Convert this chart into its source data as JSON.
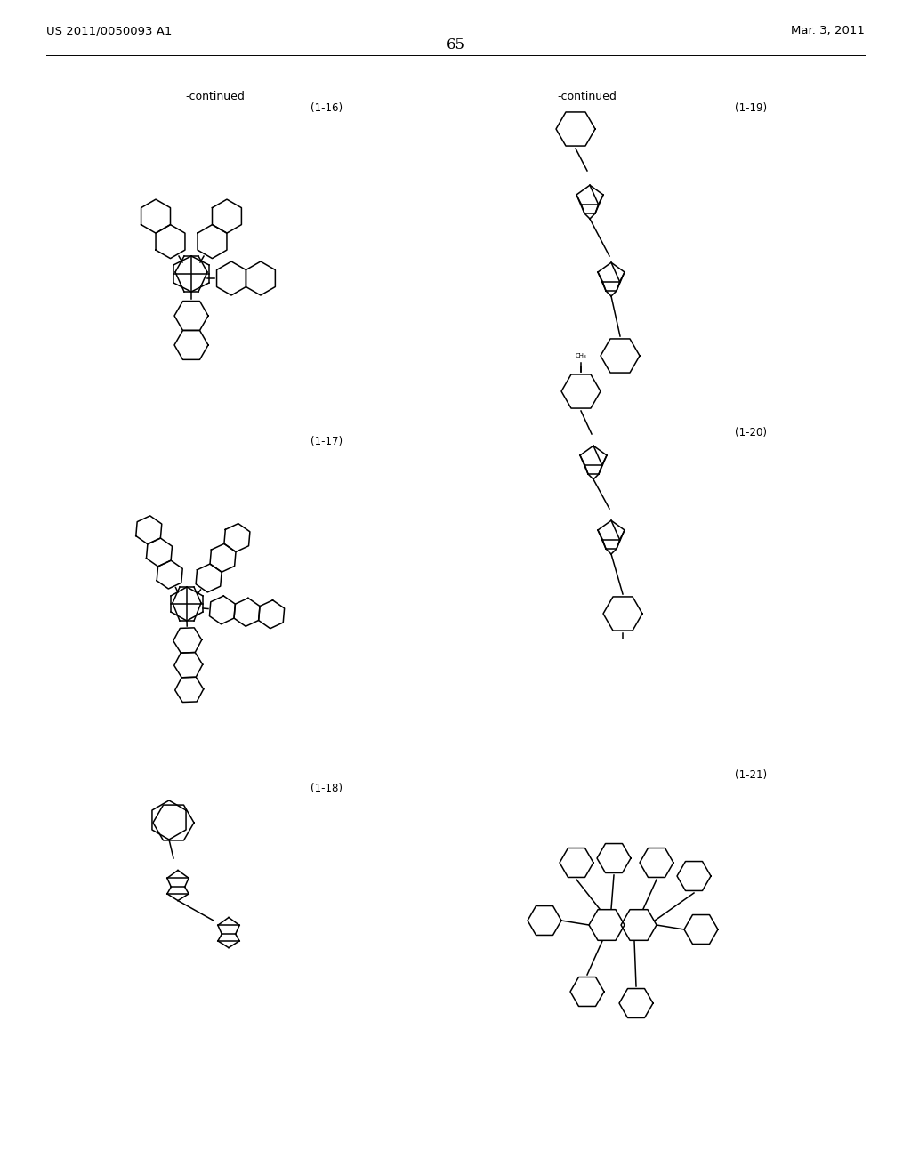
{
  "page_number": "65",
  "patent_number": "US 2011/0050093 A1",
  "patent_date": "Mar. 3, 2011",
  "background_color": "#ffffff",
  "text_color": "#000000",
  "line_color": "#000000",
  "lw": 1.1
}
